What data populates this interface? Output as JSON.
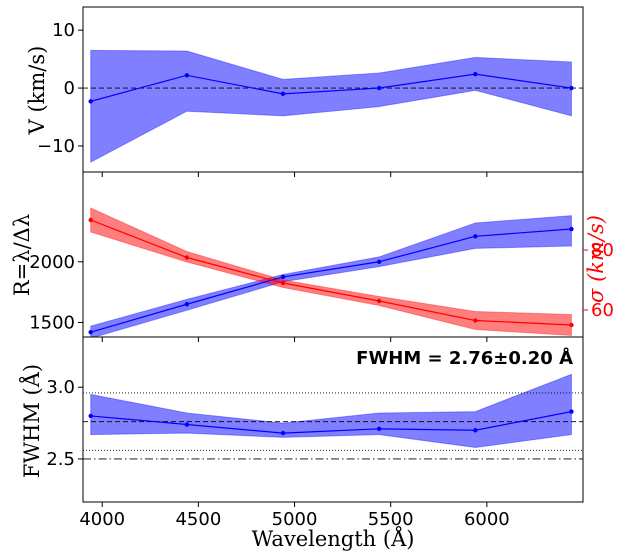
{
  "chart_data": [
    {
      "type": "line",
      "panel": "velocity",
      "ylabel": "V (km/s)",
      "xlim": [
        3900,
        6500
      ],
      "ylim": [
        -14.5,
        14
      ],
      "yticks": [
        -10,
        0,
        10
      ],
      "ytick_labels": [
        "−10",
        "0",
        "10"
      ],
      "reference_line": {
        "y": 0,
        "style": "dashed"
      },
      "series": [
        {
          "color": "#0000ff",
          "x": [
            3940,
            4440,
            4940,
            5440,
            5940,
            6440
          ],
          "y": [
            -2.3,
            2.2,
            -1.0,
            0.0,
            2.4,
            0.0
          ],
          "band_low": [
            -12.8,
            -4.0,
            -4.8,
            -3.2,
            -0.4,
            -4.8
          ],
          "band_high": [
            6.5,
            6.4,
            1.5,
            2.6,
            5.3,
            4.5
          ]
        }
      ]
    },
    {
      "type": "line",
      "panel": "resolution",
      "ylabel": "R=λ/Δλ",
      "ylabel2": "σ (km/s)",
      "xlim": [
        3900,
        6500
      ],
      "ylim": [
        1380,
        2740
      ],
      "yticks": [
        1500,
        2000
      ],
      "ytick_labels": [
        "1500",
        "2000"
      ],
      "ylim2": [
        51,
        106
      ],
      "yticks2": [
        60,
        80
      ],
      "ytick_labels2": [
        "60",
        "80"
      ],
      "series": [
        {
          "axis": "left",
          "color": "#0000ff",
          "x": [
            3940,
            4440,
            4940,
            5440,
            5940,
            6440
          ],
          "y": [
            1420,
            1650,
            1875,
            2000,
            2210,
            2270
          ],
          "band_low": [
            1370,
            1600,
            1835,
            1960,
            2110,
            2130
          ],
          "band_high": [
            1470,
            1690,
            1895,
            2040,
            2320,
            2380
          ]
        },
        {
          "axis": "right",
          "color": "#ff0000",
          "x": [
            3940,
            4440,
            4940,
            5440,
            5940,
            6440
          ],
          "y": [
            90.0,
            77.5,
            69.0,
            63.0,
            56.5,
            55.0
          ],
          "band_low": [
            86.0,
            76.0,
            67.5,
            61.5,
            53.5,
            51.5
          ],
          "band_high": [
            94.0,
            79.5,
            70.0,
            64.5,
            59.5,
            58.5
          ]
        }
      ]
    },
    {
      "type": "line",
      "panel": "fwhm",
      "ylabel": "FWHM (Å)",
      "xlabel": "Wavelength (Å)",
      "annotation": "FWHM = 2.76±0.20 Å",
      "xlim": [
        3900,
        6500
      ],
      "ylim": [
        2.2,
        3.35
      ],
      "yticks": [
        2.5,
        3.0
      ],
      "ytick_labels": [
        "2.5",
        "3.0"
      ],
      "xticks": [
        4000,
        4500,
        5000,
        5500,
        6000
      ],
      "xtick_labels": [
        "4000",
        "4500",
        "5000",
        "5500",
        "6000"
      ],
      "reference_lines": [
        {
          "y": 2.96,
          "style": "dotted"
        },
        {
          "y": 2.76,
          "style": "dashed"
        },
        {
          "y": 2.56,
          "style": "dotted"
        },
        {
          "y": 2.5,
          "style": "dashdot"
        }
      ],
      "series": [
        {
          "color": "#0000ff",
          "x": [
            3940,
            4440,
            4940,
            5440,
            5940,
            6440
          ],
          "y": [
            2.8,
            2.74,
            2.68,
            2.71,
            2.7,
            2.83
          ],
          "band_low": [
            2.67,
            2.68,
            2.65,
            2.67,
            2.58,
            2.67
          ],
          "band_high": [
            2.95,
            2.82,
            2.75,
            2.82,
            2.83,
            3.09
          ]
        }
      ]
    }
  ]
}
